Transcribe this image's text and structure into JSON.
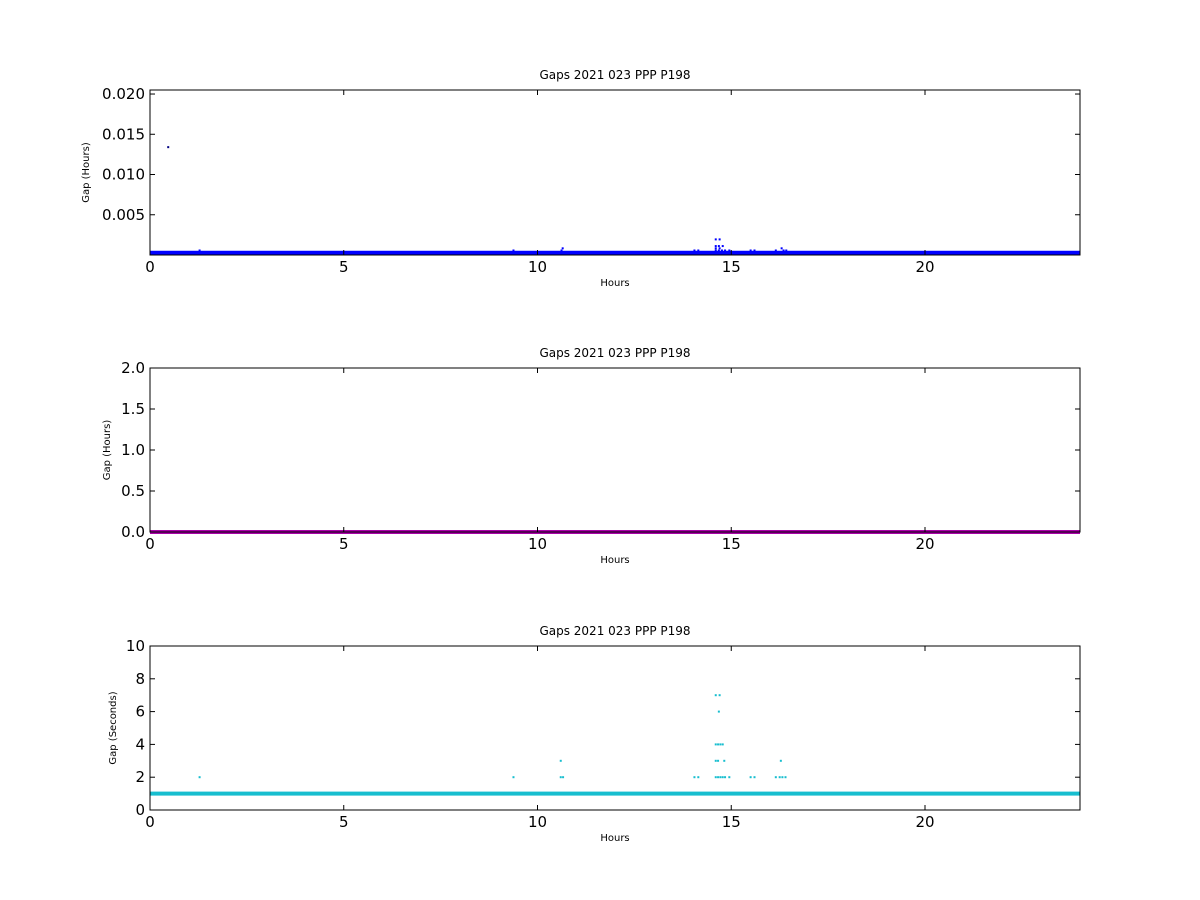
{
  "chart_data": [
    {
      "type": "scatter",
      "title": "Gaps 2021 023 PPP  P198",
      "xlabel": "Hours",
      "ylabel": "Gap (Hours)",
      "xlim": [
        0,
        24
      ],
      "ylim": [
        0,
        0.0205
      ],
      "xticks": [
        0,
        5,
        10,
        15,
        20
      ],
      "yticks": [
        0.005,
        0.01,
        0.015,
        0.02
      ],
      "ytick_labels": [
        "0.005",
        "0.010",
        "0.015",
        "0.020"
      ],
      "grid": false,
      "series": [
        {
          "color": "#0000ff",
          "baseline": {
            "x_start": 0,
            "x_end": 24,
            "y": 0.000278
          },
          "points": [
            {
              "x": 0.47,
              "y": 0.0134,
              "color": "#000080"
            },
            {
              "x": 1.28,
              "y": 0.00056
            },
            {
              "x": 9.38,
              "y": 0.00056
            },
            {
              "x": 10.62,
              "y": 0.00056
            },
            {
              "x": 10.65,
              "y": 0.00083
            },
            {
              "x": 14.05,
              "y": 0.00056
            },
            {
              "x": 14.15,
              "y": 0.00056
            },
            {
              "x": 14.6,
              "y": 0.00194
            },
            {
              "x": 14.7,
              "y": 0.00194
            },
            {
              "x": 14.6,
              "y": 0.00111
            },
            {
              "x": 14.68,
              "y": 0.00111
            },
            {
              "x": 14.78,
              "y": 0.00111
            },
            {
              "x": 14.6,
              "y": 0.00083
            },
            {
              "x": 14.7,
              "y": 0.00083
            },
            {
              "x": 14.6,
              "y": 0.00056
            },
            {
              "x": 14.68,
              "y": 0.00056
            },
            {
              "x": 14.76,
              "y": 0.00056
            },
            {
              "x": 14.84,
              "y": 0.00056
            },
            {
              "x": 14.95,
              "y": 0.00056
            },
            {
              "x": 15.5,
              "y": 0.00056
            },
            {
              "x": 15.6,
              "y": 0.00056
            },
            {
              "x": 16.15,
              "y": 0.00056
            },
            {
              "x": 16.3,
              "y": 0.00083
            },
            {
              "x": 16.35,
              "y": 0.00056
            },
            {
              "x": 16.42,
              "y": 0.00056
            }
          ]
        }
      ]
    },
    {
      "type": "scatter",
      "title": "Gaps 2021 023 PPP  P198",
      "xlabel": "Hours",
      "ylabel": "Gap (Hours)",
      "xlim": [
        0,
        24
      ],
      "ylim": [
        0,
        2.0
      ],
      "xticks": [
        0,
        5,
        10,
        15,
        20
      ],
      "yticks": [
        0.0,
        0.5,
        1.0,
        1.5,
        2.0
      ],
      "ytick_labels": [
        "0.0",
        "0.5",
        "1.0",
        "1.5",
        "2.0"
      ],
      "grid": false,
      "series": [
        {
          "color": "#aa00aa",
          "baseline": {
            "x_start": 0,
            "x_end": 24,
            "y": 0.0
          },
          "points": []
        }
      ]
    },
    {
      "type": "scatter",
      "title": "Gaps 2021 023 PPP  P198",
      "xlabel": "Hours",
      "ylabel": "Gap (Seconds)",
      "xlim": [
        0,
        24
      ],
      "ylim": [
        0,
        10
      ],
      "xticks": [
        0,
        5,
        10,
        15,
        20
      ],
      "yticks": [
        0,
        2,
        4,
        6,
        8,
        10
      ],
      "ytick_labels": [
        "0",
        "2",
        "4",
        "6",
        "8",
        "10"
      ],
      "grid": false,
      "series": [
        {
          "color": "#17becf",
          "baseline": {
            "x_start": 0,
            "x_end": 24,
            "y": 1
          },
          "points": [
            {
              "x": 1.28,
              "y": 2
            },
            {
              "x": 9.38,
              "y": 2
            },
            {
              "x": 10.6,
              "y": 3
            },
            {
              "x": 10.6,
              "y": 2
            },
            {
              "x": 10.66,
              "y": 2
            },
            {
              "x": 14.05,
              "y": 2
            },
            {
              "x": 14.15,
              "y": 2
            },
            {
              "x": 14.6,
              "y": 7
            },
            {
              "x": 14.7,
              "y": 7
            },
            {
              "x": 14.68,
              "y": 6
            },
            {
              "x": 14.6,
              "y": 4
            },
            {
              "x": 14.66,
              "y": 4
            },
            {
              "x": 14.72,
              "y": 4
            },
            {
              "x": 14.78,
              "y": 4
            },
            {
              "x": 14.6,
              "y": 3
            },
            {
              "x": 14.66,
              "y": 3
            },
            {
              "x": 14.82,
              "y": 3
            },
            {
              "x": 14.6,
              "y": 2
            },
            {
              "x": 14.66,
              "y": 2
            },
            {
              "x": 14.72,
              "y": 2
            },
            {
              "x": 14.78,
              "y": 2
            },
            {
              "x": 14.84,
              "y": 2
            },
            {
              "x": 14.95,
              "y": 2
            },
            {
              "x": 15.5,
              "y": 2
            },
            {
              "x": 15.6,
              "y": 2
            },
            {
              "x": 16.15,
              "y": 2
            },
            {
              "x": 16.28,
              "y": 3
            },
            {
              "x": 16.25,
              "y": 2
            },
            {
              "x": 16.32,
              "y": 2
            },
            {
              "x": 16.4,
              "y": 2
            }
          ]
        }
      ]
    }
  ]
}
